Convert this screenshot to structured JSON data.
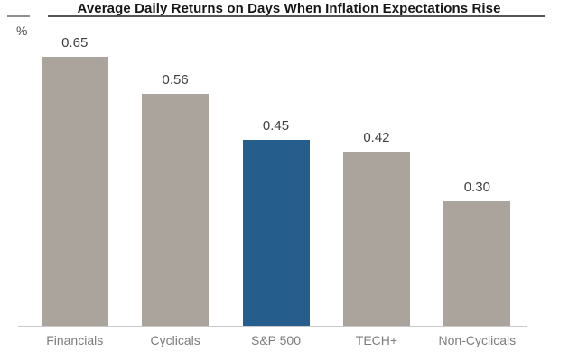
{
  "chart_data": {
    "type": "bar",
    "title": "Average Daily Returns on Days When Inflation Expectations Rise",
    "ylabel": "%",
    "categories": [
      "Financials",
      "Cyclicals",
      "S&P 500",
      "TECH+",
      "Non-Cyclicals"
    ],
    "values": [
      0.65,
      0.56,
      0.45,
      0.42,
      0.3
    ],
    "value_labels": [
      "0.65",
      "0.56",
      "0.45",
      "0.42",
      "0.30"
    ],
    "ylim": [
      0,
      0.7
    ],
    "grid": false,
    "legend": false,
    "highlight_index": 2,
    "highlight_category": "S&P 500",
    "colors": {
      "bar": "#aba49d",
      "highlight": "#255e8c",
      "value_label": "#3e3e3e",
      "category_label": "#7c7c7c",
      "axis_line": "#c9c9c9",
      "title_underline": "#555555"
    }
  }
}
